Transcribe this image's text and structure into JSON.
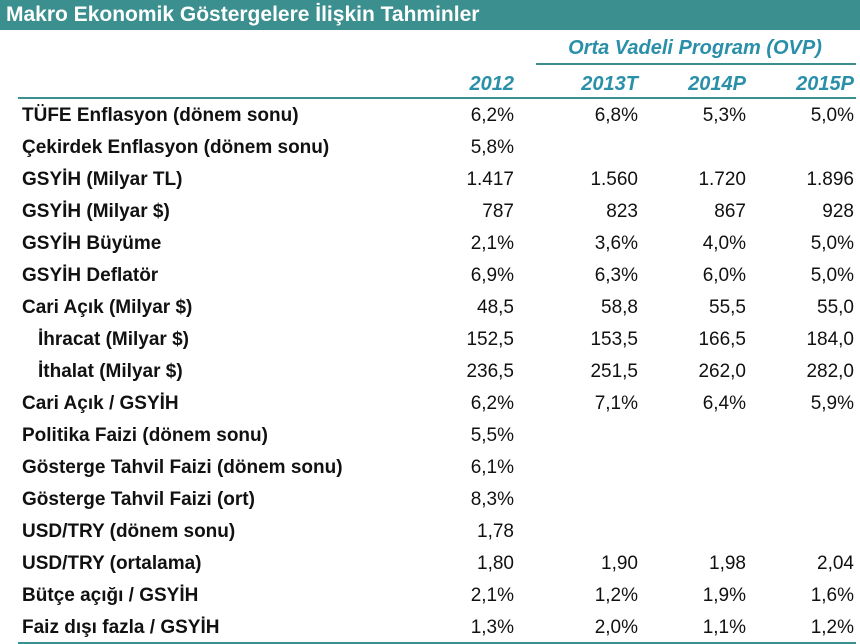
{
  "title": "Makro Ekonomik Göstergelere İlişkin Tahminler",
  "program_header": "Orta Vadeli Program (OVP)",
  "columns": [
    "2012",
    "2013T",
    "2014P",
    "2015P"
  ],
  "rows": [
    {
      "label": "TÜFE Enflasyon (dönem sonu)",
      "values": [
        "6,2%",
        "6,8%",
        "5,3%",
        "5,0%"
      ]
    },
    {
      "label": "Çekirdek Enflasyon (dönem sonu)",
      "values": [
        "5,8%",
        "",
        "",
        ""
      ]
    },
    {
      "label": "GSYİH (Milyar TL)",
      "values": [
        "1.417",
        "1.560",
        "1.720",
        "1.896"
      ]
    },
    {
      "label": "GSYİH (Milyar $)",
      "values": [
        "787",
        "823",
        "867",
        "928"
      ]
    },
    {
      "label": "GSYİH  Büyüme",
      "values": [
        "2,1%",
        "3,6%",
        "4,0%",
        "5,0%"
      ]
    },
    {
      "label": "GSYİH  Deflatör",
      "values": [
        "6,9%",
        "6,3%",
        "6,0%",
        "5,0%"
      ]
    },
    {
      "label": "Cari Açık (Milyar $)",
      "values": [
        "48,5",
        "58,8",
        "55,5",
        "55,0"
      ]
    },
    {
      "label": "İhracat (Milyar $)",
      "values": [
        "152,5",
        "153,5",
        "166,5",
        "184,0"
      ]
    },
    {
      "label": "İthalat  (Milyar $)",
      "values": [
        "236,5",
        "251,5",
        "262,0",
        "282,0"
      ]
    },
    {
      "label": "Cari Açık / GSYİH",
      "values": [
        "6,2%",
        "7,1%",
        "6,4%",
        "5,9%"
      ]
    },
    {
      "label": "Politika Faizi (dönem sonu)",
      "values": [
        "5,5%",
        "",
        "",
        ""
      ]
    },
    {
      "label": "Gösterge Tahvil Faizi (dönem sonu)",
      "values": [
        "6,1%",
        "",
        "",
        ""
      ]
    },
    {
      "label": "Gösterge Tahvil Faizi (ort)",
      "values": [
        "8,3%",
        "",
        "",
        ""
      ]
    },
    {
      "label": "USD/TRY (dönem sonu)",
      "values": [
        "1,78",
        "",
        "",
        ""
      ]
    },
    {
      "label": "USD/TRY (ortalama)",
      "values": [
        "1,80",
        "1,90",
        "1,98",
        "2,04"
      ]
    },
    {
      "label": "Bütçe açığı / GSYİH",
      "values": [
        "2,1%",
        "1,2%",
        "1,9%",
        "1,6%"
      ]
    },
    {
      "label": "Faiz dışı fazla / GSYİH",
      "values": [
        "1,3%",
        "2,0%",
        "1,1%",
        "1,2%"
      ]
    }
  ],
  "colors": {
    "header_bg": "#3b8f8f",
    "header_text": "#2a8fa8"
  }
}
